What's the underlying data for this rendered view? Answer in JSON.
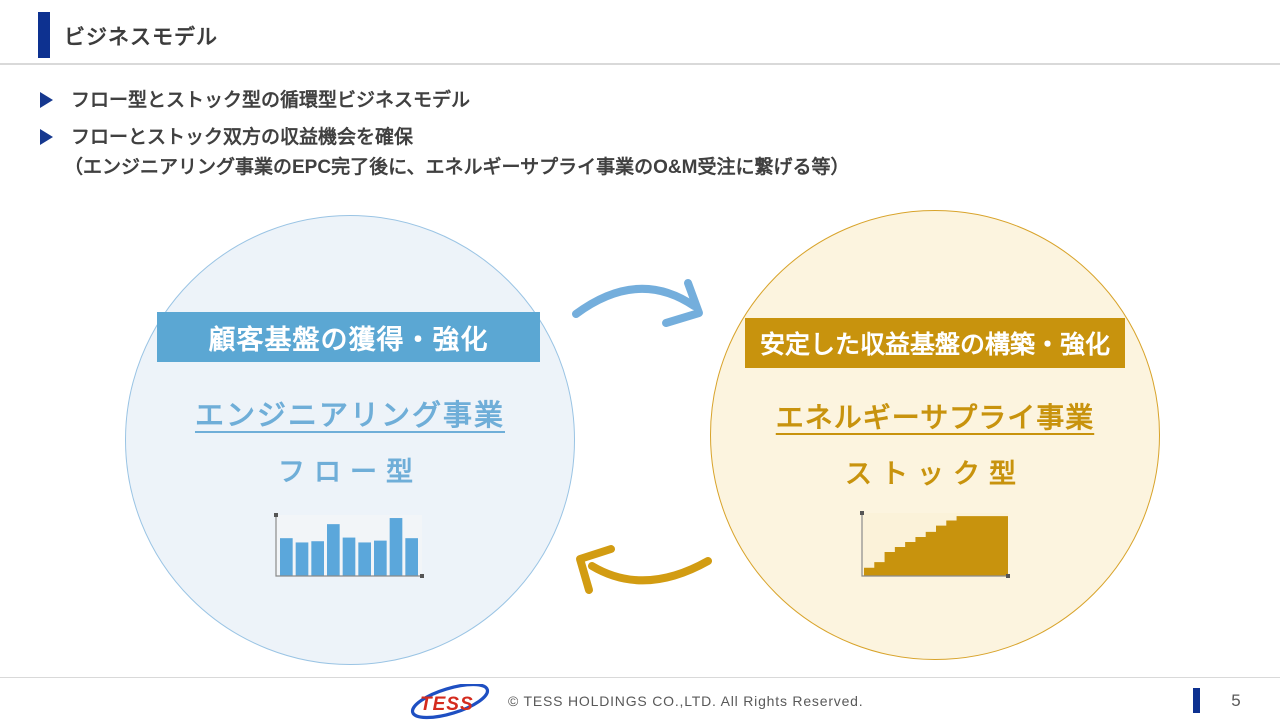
{
  "header": {
    "title": "ビジネスモデル"
  },
  "bullets": [
    {
      "text": "フロー型とストック型の循環型ビジネスモデル"
    },
    {
      "text": "フローとストック双方の収益機会を確保",
      "subtext": "（エンジニアリング事業のEPC完了後に、エネルギーサプライ事業のO&M受注に繋げる等）"
    }
  ],
  "diagram": {
    "left_circle": {
      "label": "顧客基盤の獲得・強化",
      "business": "エンジニアリング事業",
      "model_type": "フロー型",
      "accent_color": "#5BA7D3",
      "fill_color": "#EDF3F9",
      "border_color": "#9AC4E4",
      "icon_chart": {
        "type": "bar",
        "values": [
          62,
          55,
          57,
          85,
          63,
          55,
          58,
          95,
          62
        ],
        "bar_color": "#5BA7DB",
        "panel_color": "#F2F5F8",
        "axis_color": "#8a8a8a"
      }
    },
    "right_circle": {
      "label": "安定した収益基盤の構築・強化",
      "business": "エネルギーサプライ事業",
      "model_type": "ストック型",
      "accent_color": "#C8930D",
      "fill_color": "#FCF4DF",
      "border_color": "#D8A32A",
      "icon_chart": {
        "type": "step-area",
        "values": [
          13,
          22,
          38,
          46,
          54,
          62,
          70,
          80,
          88,
          95,
          95,
          95,
          95,
          95
        ],
        "area_color": "#C8930D",
        "panel_color": "#FBF2D9",
        "axis_color": "#8a8a8a"
      }
    },
    "arrows": {
      "top_arrow_color": "#74AEDC",
      "bottom_arrow_color": "#D29C12"
    }
  },
  "footer": {
    "logo_text": "TESS",
    "logo_text_color": "#D42B1E",
    "logo_swoosh_color": "#1E4FC2",
    "copyright": "© TESS HOLDINGS CO.,LTD. All Rights Reserved.",
    "page_number": "5"
  }
}
